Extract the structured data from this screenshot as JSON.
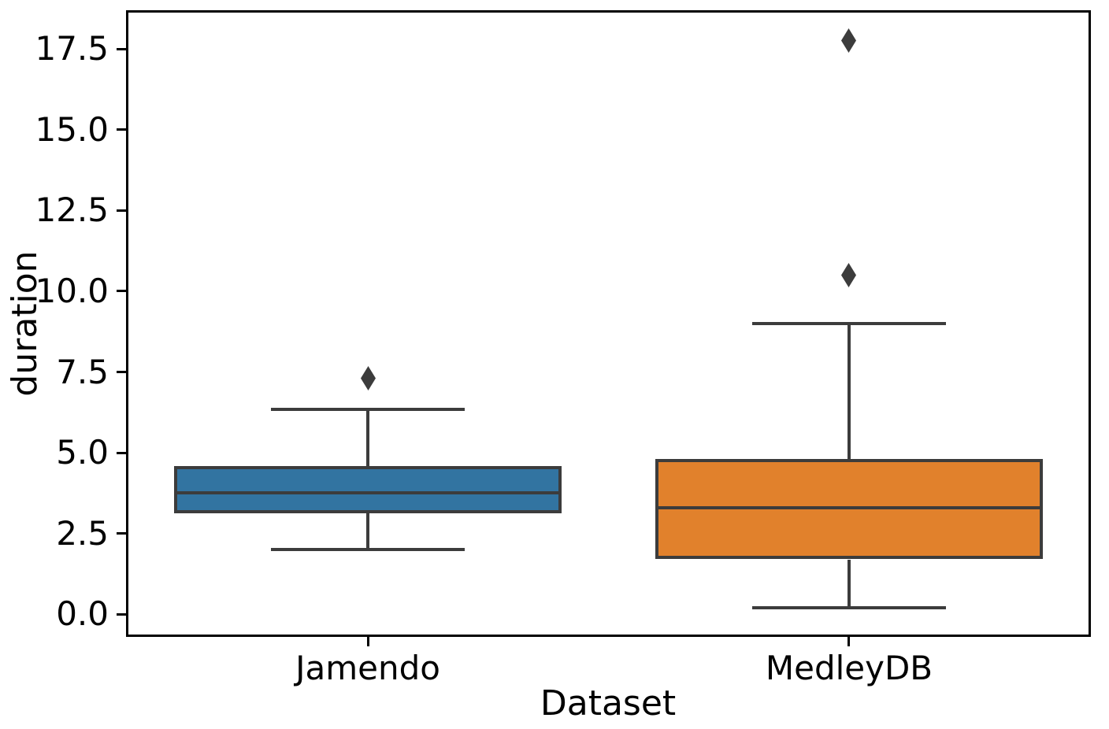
{
  "figure": {
    "background": "#ffffff"
  },
  "chart_data": {
    "type": "box",
    "title": "",
    "xlabel": "Dataset",
    "ylabel": "duration",
    "categories": [
      "Jamendo",
      "MedleyDB"
    ],
    "yticks": [
      0.0,
      2.5,
      5.0,
      7.5,
      10.0,
      12.5,
      15.0,
      17.5
    ],
    "ytick_labels": [
      "0.0",
      "2.5",
      "5.0",
      "7.5",
      "10.0",
      "12.5",
      "15.0",
      "17.5"
    ],
    "ylim": [
      -0.65,
      18.65
    ],
    "grid": false,
    "legend_position": "none",
    "series": [
      {
        "name": "Jamendo",
        "stats": {
          "whisker_low": 2.0,
          "q1": 3.15,
          "median": 3.75,
          "q3": 4.6,
          "whisker_high": 6.35
        },
        "outliers": [
          7.3
        ],
        "fill_color": "#3274a1"
      },
      {
        "name": "MedleyDB",
        "stats": {
          "whisker_low": 0.2,
          "q1": 1.7,
          "median": 3.3,
          "q3": 4.8,
          "whisker_high": 9.0
        },
        "outliers": [
          10.5,
          17.75
        ],
        "fill_color": "#e1812c"
      }
    ],
    "colors": {
      "edge": "#3c3c3c",
      "flier": "#3c3c3c",
      "spine": "#000000"
    }
  }
}
